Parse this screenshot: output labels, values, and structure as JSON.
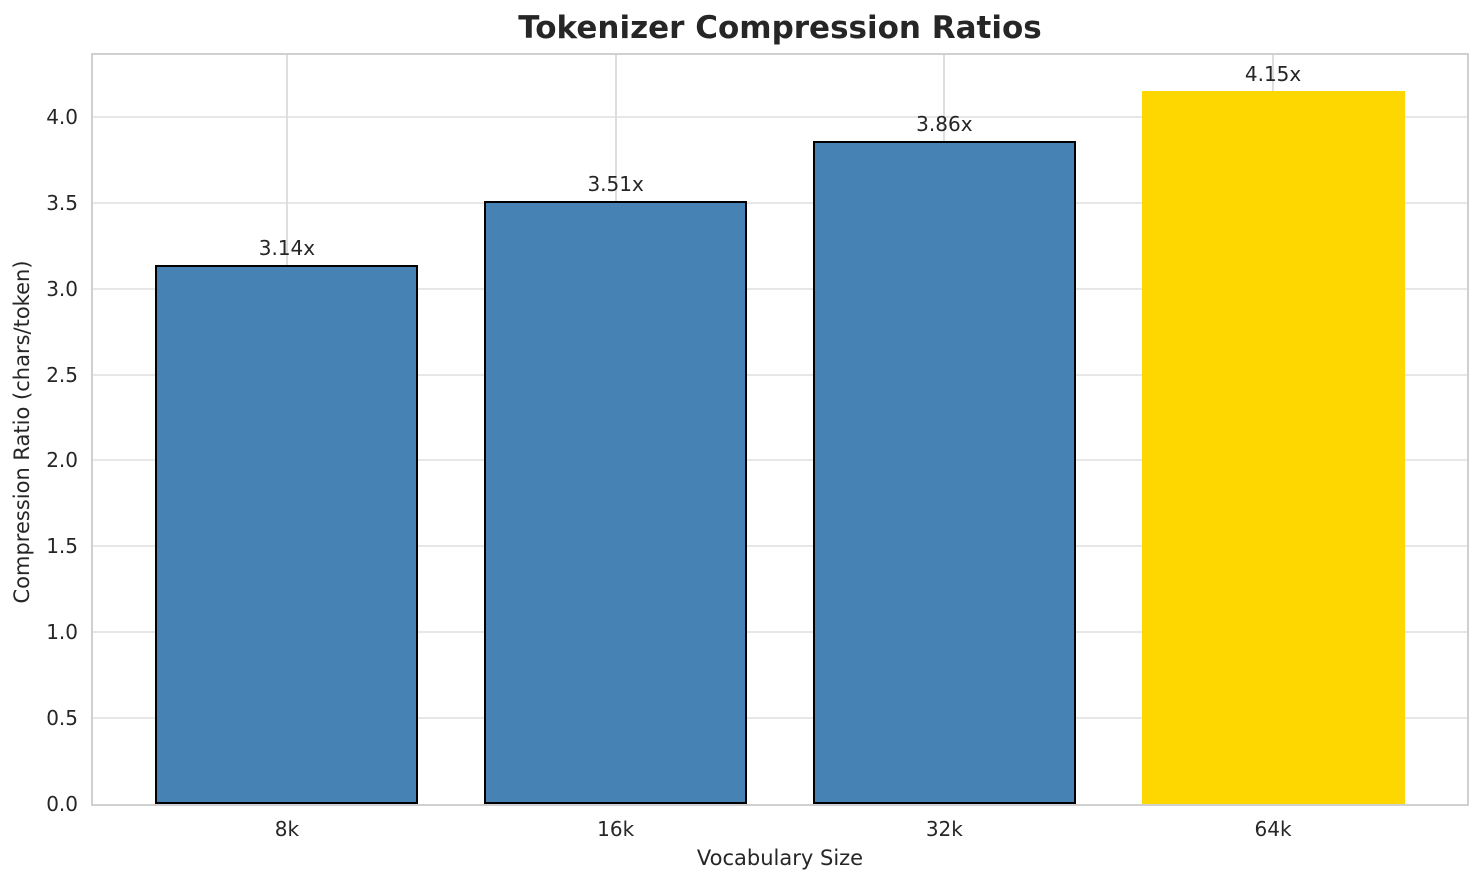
{
  "chart_data": {
    "type": "bar",
    "title": "Tokenizer Compression Ratios",
    "xlabel": "Vocabulary Size",
    "ylabel": "Compression Ratio (chars/token)",
    "categories": [
      "8k",
      "16k",
      "32k",
      "64k"
    ],
    "values": [
      3.14,
      3.51,
      3.86,
      4.15
    ],
    "bar_labels": [
      "3.14x",
      "3.51x",
      "3.86x",
      "4.15x"
    ],
    "bar_colors": [
      "#4682B4",
      "#4682B4",
      "#4682B4",
      "#FFD700"
    ],
    "bar_edge_colors": [
      "#000000",
      "#000000",
      "#000000",
      "none"
    ],
    "ylim": [
      0,
      4.36
    ],
    "yticks": [
      0.0,
      0.5,
      1.0,
      1.5,
      2.0,
      2.5,
      3.0,
      3.5,
      4.0
    ],
    "ytick_labels": [
      "0.0",
      "0.5",
      "1.0",
      "1.5",
      "2.0",
      "2.5",
      "3.0",
      "3.5",
      "4.0"
    ],
    "bar_width_fraction": 0.8,
    "grid": true,
    "legend": "none",
    "colors": {
      "background": "#ffffff",
      "grid_horizontal": "#e7e7e7",
      "grid_vertical": "#dedede",
      "spine": "#d0d0d0",
      "text": "#262626",
      "bar_blue": "#4682B4",
      "bar_gold": "#FFD700",
      "bar_edge": "#000000"
    }
  }
}
